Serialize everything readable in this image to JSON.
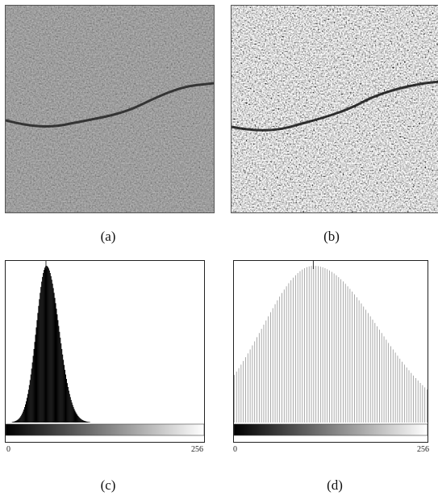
{
  "figure": {
    "panels": [
      {
        "id": "a",
        "caption": "(a)"
      },
      {
        "id": "b",
        "caption": "(b)"
      },
      {
        "id": "c",
        "caption": "(c)"
      },
      {
        "id": "d",
        "caption": "(d)"
      }
    ]
  },
  "chart_data": [
    {
      "type": "bar",
      "panel": "c",
      "xlim": [
        0,
        256
      ],
      "x_tick_labels": [
        "0",
        "256"
      ],
      "peak_bin": 52,
      "spread_bins": 13,
      "color": "#000000",
      "gradient_bar": true
    },
    {
      "type": "bar",
      "panel": "d",
      "xlim": [
        0,
        256
      ],
      "x_tick_labels": [
        "0",
        "256"
      ],
      "peak_bin": 105,
      "spread_bins": 68,
      "color": "#9a9a9a",
      "gradient_bar": true
    }
  ]
}
